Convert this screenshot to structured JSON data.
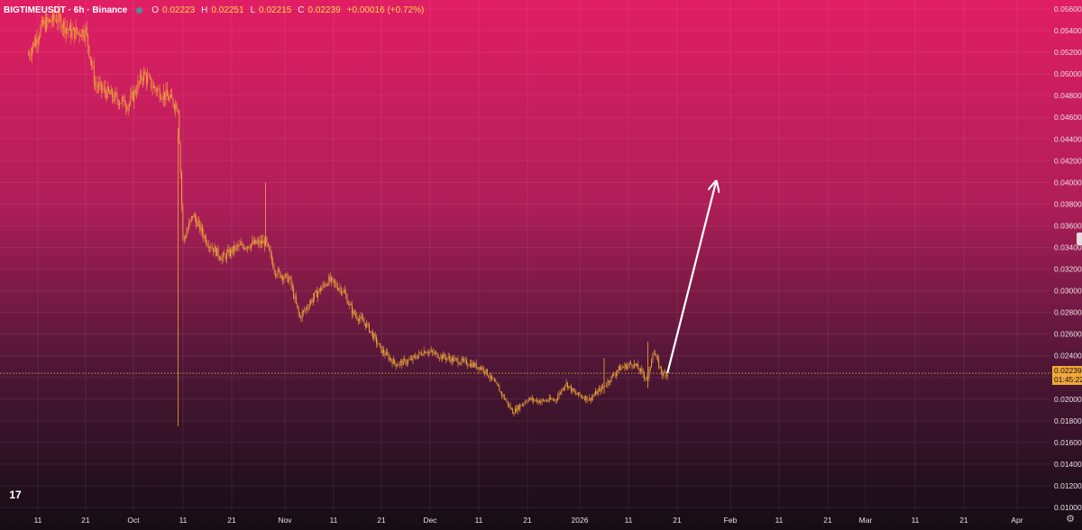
{
  "header": {
    "symbol": "BIGTIMEUSDT · 6h · Binance",
    "open_label": "O",
    "open": "0.02223",
    "high_label": "H",
    "high": "0.02251",
    "low_label": "L",
    "low": "0.02215",
    "close_label": "C",
    "close": "0.02239",
    "change": "+0.00016 (+0.72%)"
  },
  "last_price": {
    "price": "0.02239",
    "countdown": "01:45:22"
  },
  "colors": {
    "background_top": "#e11e63",
    "background_bottom": "#140d14",
    "candles": "#f0a93a",
    "arrow": "#ffffff",
    "price_line": "#f0a93a"
  },
  "icons": {
    "logo": "tradingview-logo-icon",
    "settings": "gear-icon"
  },
  "logo_text": "17",
  "chart_data": {
    "type": "candlestick",
    "timeframe": "6h",
    "y_axis": {
      "ticks": [
        "0.05600",
        "0.05400",
        "0.05200",
        "0.05000",
        "0.04800",
        "0.04600",
        "0.04400",
        "0.04200",
        "0.04000",
        "0.03800",
        "0.03600",
        "0.03400",
        "0.03200",
        "0.03000",
        "0.02800",
        "0.02600",
        "0.02400",
        "0.02200",
        "0.02000",
        "0.01800",
        "0.01600",
        "0.01400",
        "0.01200",
        "0.01000"
      ],
      "range": [
        0.0094,
        0.0572
      ]
    },
    "x_axis": {
      "ticks": [
        "11",
        "21",
        "Oct",
        "11",
        "21",
        "Nov",
        "11",
        "21",
        "Dec",
        "11",
        "21",
        "2026",
        "11",
        "21",
        "Feb",
        "11",
        "21",
        "Mar",
        "11",
        "21",
        "Apr"
      ]
    },
    "price_path": [
      {
        "date": "2025-09-09",
        "price": 0.0518
      },
      {
        "date": "2025-09-12",
        "price": 0.0545
      },
      {
        "date": "2025-09-15",
        "price": 0.0552
      },
      {
        "date": "2025-09-18",
        "price": 0.0538
      },
      {
        "date": "2025-09-21",
        "price": 0.054
      },
      {
        "date": "2025-09-23",
        "price": 0.049
      },
      {
        "date": "2025-09-27",
        "price": 0.0478
      },
      {
        "date": "2025-09-30",
        "price": 0.0472
      },
      {
        "date": "2025-10-03",
        "price": 0.05
      },
      {
        "date": "2025-10-05",
        "price": 0.0488
      },
      {
        "date": "2025-10-08",
        "price": 0.0478
      },
      {
        "date": "2025-10-10",
        "price": 0.047
      },
      {
        "date": "2025-10-11",
        "price": 0.0345
      },
      {
        "date": "2025-10-13",
        "price": 0.037
      },
      {
        "date": "2025-10-16",
        "price": 0.0345
      },
      {
        "date": "2025-10-19",
        "price": 0.033
      },
      {
        "date": "2025-10-22",
        "price": 0.034
      },
      {
        "date": "2025-10-25",
        "price": 0.0343
      },
      {
        "date": "2025-10-28",
        "price": 0.0345
      },
      {
        "date": "2025-10-30",
        "price": 0.0318
      },
      {
        "date": "2025-11-02",
        "price": 0.031
      },
      {
        "date": "2025-11-04",
        "price": 0.0275
      },
      {
        "date": "2025-11-07",
        "price": 0.0295
      },
      {
        "date": "2025-11-10",
        "price": 0.031
      },
      {
        "date": "2025-11-13",
        "price": 0.03
      },
      {
        "date": "2025-11-15",
        "price": 0.028
      },
      {
        "date": "2025-11-18",
        "price": 0.0268
      },
      {
        "date": "2025-11-21",
        "price": 0.0245
      },
      {
        "date": "2025-11-24",
        "price": 0.0232
      },
      {
        "date": "2025-11-27",
        "price": 0.0236
      },
      {
        "date": "2025-11-30",
        "price": 0.0245
      },
      {
        "date": "2025-12-03",
        "price": 0.024
      },
      {
        "date": "2025-12-06",
        "price": 0.0236
      },
      {
        "date": "2025-12-09",
        "price": 0.0233
      },
      {
        "date": "2025-12-12",
        "price": 0.0228
      },
      {
        "date": "2025-12-15",
        "price": 0.021
      },
      {
        "date": "2025-12-18",
        "price": 0.0188
      },
      {
        "date": "2025-12-21",
        "price": 0.02
      },
      {
        "date": "2025-12-24",
        "price": 0.0198
      },
      {
        "date": "2025-12-27",
        "price": 0.02
      },
      {
        "date": "2025-12-29",
        "price": 0.0215
      },
      {
        "date": "2025-12-31",
        "price": 0.0205
      },
      {
        "date": "2026-01-03",
        "price": 0.02
      },
      {
        "date": "2026-01-06",
        "price": 0.0212
      },
      {
        "date": "2026-01-09",
        "price": 0.0228
      },
      {
        "date": "2026-01-12",
        "price": 0.0233
      },
      {
        "date": "2026-01-15",
        "price": 0.0218
      },
      {
        "date": "2026-01-16",
        "price": 0.0245
      },
      {
        "date": "2026-01-18",
        "price": 0.0223
      },
      {
        "date": "2026-01-19",
        "price": 0.0224
      }
    ],
    "annotation_arrow": {
      "type": "arrow",
      "from": {
        "date": "2026-01-19",
        "price": 0.0224
      },
      "to": {
        "date": "2026-01-29",
        "price": 0.04
      }
    },
    "last_price_line": 0.02239,
    "grid": true
  }
}
